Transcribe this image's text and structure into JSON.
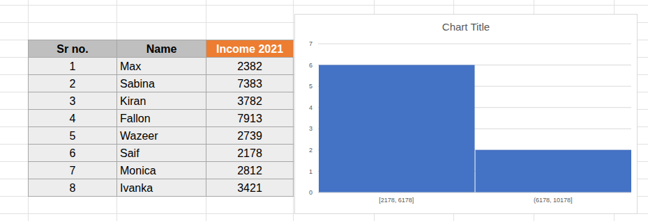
{
  "table": {
    "columns": [
      "Sr no.",
      "Name",
      "Income 2021"
    ],
    "rows": [
      [
        1,
        "Max",
        2382
      ],
      [
        2,
        "Sabina",
        7383
      ],
      [
        3,
        "Kiran",
        3782
      ],
      [
        4,
        "Fallon",
        7913
      ],
      [
        5,
        "Wazeer",
        2739
      ],
      [
        6,
        "Saif",
        2178
      ],
      [
        7,
        "Monica",
        2812
      ],
      [
        8,
        "Ivanka",
        3421
      ]
    ]
  },
  "chart_data": {
    "type": "histogram",
    "title": "Chart Title",
    "bins": [
      2178,
      6178,
      10178
    ],
    "categories": [
      "[2178, 6178]",
      "(6178, 10178]"
    ],
    "values": [
      6,
      2
    ],
    "color": "#4472c4",
    "ylim": [
      0,
      7
    ],
    "yticks": [
      0,
      1,
      2,
      3,
      4,
      5,
      6,
      7
    ],
    "grid": true
  }
}
